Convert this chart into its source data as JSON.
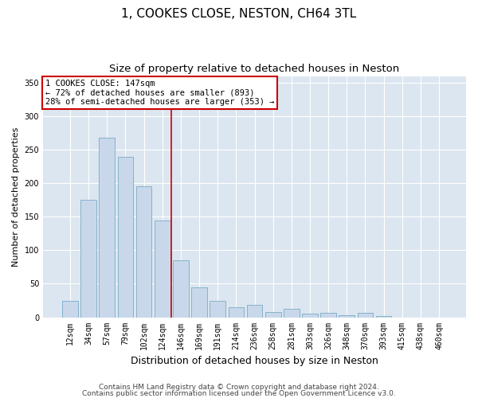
{
  "title": "1, COOKES CLOSE, NESTON, CH64 3TL",
  "subtitle": "Size of property relative to detached houses in Neston",
  "xlabel": "Distribution of detached houses by size in Neston",
  "ylabel": "Number of detached properties",
  "categories": [
    "12sqm",
    "34sqm",
    "57sqm",
    "79sqm",
    "102sqm",
    "124sqm",
    "146sqm",
    "169sqm",
    "191sqm",
    "214sqm",
    "236sqm",
    "258sqm",
    "281sqm",
    "303sqm",
    "326sqm",
    "348sqm",
    "370sqm",
    "393sqm",
    "415sqm",
    "438sqm",
    "460sqm"
  ],
  "values": [
    25,
    175,
    268,
    240,
    195,
    145,
    85,
    45,
    25,
    15,
    18,
    8,
    13,
    5,
    7,
    3,
    7,
    2,
    0,
    0,
    0
  ],
  "bar_color": "#c8d8ea",
  "bar_edge_color": "#7aaac8",
  "vline_position": 5.5,
  "vline_color": "#cc0000",
  "annotation_text": "1 COOKES CLOSE: 147sqm\n← 72% of detached houses are smaller (893)\n28% of semi-detached houses are larger (353) →",
  "annotation_box_color": "white",
  "annotation_box_edge": "#cc0000",
  "ylim": [
    0,
    360
  ],
  "yticks": [
    0,
    50,
    100,
    150,
    200,
    250,
    300,
    350
  ],
  "plot_bg_color": "#dce6f0",
  "fig_bg_color": "#ffffff",
  "footer1": "Contains HM Land Registry data © Crown copyright and database right 2024.",
  "footer2": "Contains public sector information licensed under the Open Government Licence v3.0.",
  "title_fontsize": 11,
  "subtitle_fontsize": 9.5,
  "xlabel_fontsize": 9,
  "ylabel_fontsize": 8,
  "tick_fontsize": 7,
  "annotation_fontsize": 7.5,
  "footer_fontsize": 6.5
}
